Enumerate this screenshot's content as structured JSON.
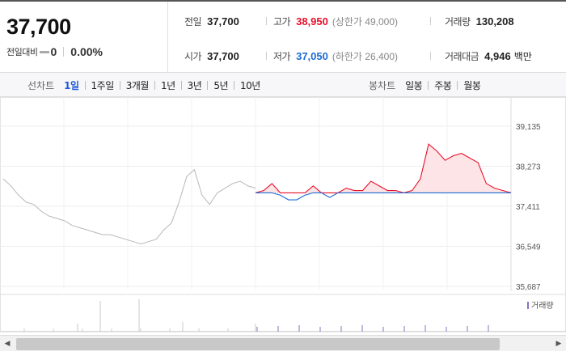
{
  "quote": {
    "price": "37,700",
    "change_label": "전일대비",
    "change_value": "0",
    "change_rate": "0.00%"
  },
  "info": {
    "prev_close_label": "전일",
    "prev_close": "37,700",
    "open_label": "시가",
    "open": "37,700",
    "high_label": "고가",
    "high": "38,950",
    "upper_limit": "(상한가 49,000)",
    "low_label": "저가",
    "low": "37,050",
    "lower_limit": "(하한가 26,400)",
    "volume_label": "거래량",
    "volume": "130,208",
    "amount_label": "거래대금",
    "amount": "4,946",
    "amount_unit": "백만"
  },
  "toolbar": {
    "line_chart_label": "선차트",
    "periods": [
      "1일",
      "1주일",
      "3개월",
      "1년",
      "3년",
      "5년",
      "10년"
    ],
    "active_period": "1일",
    "candle_chart_label": "봉차트",
    "candle_periods": [
      "일봉",
      "주봉",
      "월봉"
    ]
  },
  "colors": {
    "up": "#e8102a",
    "down": "#1b6ad6",
    "prev_day": "#b8b8b8",
    "up_fill": "#fde4e6",
    "active_tab": "#1f5bd8",
    "volume": "#8a6fc0"
  },
  "chart_data": {
    "type": "line",
    "base_price": 37700,
    "y_ticks": [
      "39,135",
      "38,273",
      "37,411",
      "36,549",
      "35,687"
    ],
    "ylim": [
      35687,
      39135
    ],
    "volume_legend": "거래량",
    "prev_day_series": [
      38000,
      37850,
      37650,
      37500,
      37450,
      37300,
      37200,
      37150,
      37100,
      37000,
      36950,
      36900,
      36850,
      36800,
      36800,
      36750,
      36700,
      36650,
      36600,
      36650,
      36700,
      36900,
      37050,
      37500,
      38050,
      38200,
      37650,
      37450,
      37700,
      37800,
      37900,
      37950,
      37850,
      37800
    ],
    "today_series": [
      37700,
      37750,
      37900,
      37650,
      37550,
      37550,
      37650,
      37850,
      37700,
      37600,
      37700,
      37800,
      37750,
      37750,
      37950,
      37850,
      37750,
      37750,
      37700,
      37750,
      38000,
      38750,
      38600,
      38400,
      38500,
      38550,
      38450,
      38350,
      37900,
      37800,
      37750,
      37700
    ]
  }
}
